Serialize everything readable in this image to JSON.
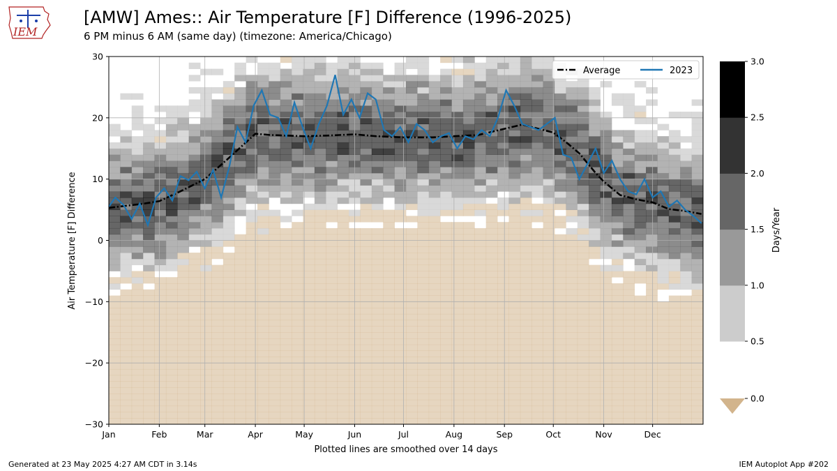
{
  "header": {
    "title": "[AMW] Ames:: Air Temperature [F] Difference (1996-2025)",
    "subtitle": "6 PM minus 6 AM (same day) (timezone: America/Chicago)",
    "logo_text": "IEM"
  },
  "footer": {
    "generated": "Generated at 23 May 2025 4:27 AM CDT in 3.14s",
    "app": "IEM Autoplot App #202"
  },
  "colors": {
    "average": "#000000",
    "year_line": "#1f77b4",
    "below_zero": "#d2b48c",
    "grid": "#b0b0b0"
  },
  "chart_data": {
    "type": "heatmap",
    "title": "[AMW] Ames:: Air Temperature [F] Difference (1996-2025)",
    "xlabel": "Plotted lines are smoothed over 14 days",
    "ylabel": "Air Temperature [F]  Difference",
    "ylim": [
      -30,
      30
    ],
    "yticks": [
      -30,
      -20,
      -10,
      0,
      10,
      20,
      30
    ],
    "ytick_labels": [
      "−30",
      "−20",
      "−10",
      "0",
      "10",
      "20",
      "30"
    ],
    "xticks": [
      "Jan",
      "Feb",
      "Mar",
      "Apr",
      "May",
      "Jun",
      "Jul",
      "Aug",
      "Sep",
      "Oct",
      "Nov",
      "Dec"
    ],
    "xtick_days": [
      1,
      32,
      60,
      91,
      121,
      152,
      182,
      213,
      244,
      274,
      305,
      335
    ],
    "grid": true,
    "legend": {
      "placement": "top-right",
      "entries": [
        "Average",
        "2023"
      ]
    },
    "colorbar": {
      "label": "Days/Year",
      "ticks": [
        "0.0",
        "0.5",
        "1.0",
        "1.5",
        "2.0",
        "2.5",
        "3.0"
      ],
      "levels": [
        0.5,
        1.0,
        1.5,
        2.0,
        2.5,
        3.0
      ],
      "colors": [
        "#cccccc",
        "#999999",
        "#666666",
        "#333333",
        "#000000"
      ],
      "under_color": "#d2b48c"
    },
    "average": {
      "name": "Average",
      "days": [
        1,
        10,
        20,
        32,
        45,
        60,
        75,
        91,
        100,
        110,
        121,
        135,
        152,
        165,
        182,
        200,
        213,
        228,
        244,
        255,
        265,
        274,
        282,
        290,
        300,
        305,
        315,
        325,
        335,
        345,
        355,
        365
      ],
      "values": [
        5.3,
        5.6,
        5.9,
        6.4,
        8.0,
        10.0,
        13.5,
        17.4,
        17.2,
        17.1,
        17.0,
        17.1,
        17.3,
        17.0,
        16.8,
        16.8,
        17.0,
        17.2,
        18.2,
        18.9,
        18.2,
        17.6,
        16.0,
        14.2,
        11.0,
        9.6,
        7.4,
        6.7,
        6.2,
        5.1,
        4.8,
        4.3
      ]
    },
    "year_2023": {
      "name": "2023",
      "days": [
        1,
        5,
        10,
        15,
        20,
        25,
        30,
        35,
        40,
        45,
        50,
        55,
        60,
        65,
        70,
        75,
        80,
        85,
        90,
        95,
        100,
        105,
        110,
        115,
        120,
        125,
        130,
        135,
        140,
        145,
        150,
        155,
        160,
        165,
        170,
        175,
        180,
        185,
        190,
        195,
        200,
        205,
        210,
        215,
        220,
        225,
        230,
        235,
        240,
        245,
        250,
        255,
        260,
        265,
        270,
        275,
        280,
        285,
        290,
        295,
        300,
        305,
        310,
        315,
        320,
        325,
        330,
        335,
        340,
        345,
        350,
        355,
        360,
        365
      ],
      "values": [
        5.5,
        7.0,
        5.8,
        3.5,
        6.0,
        2.5,
        7.0,
        8.5,
        6.5,
        10.5,
        9.8,
        11.2,
        8.5,
        11.5,
        7.0,
        12.0,
        18.5,
        16.0,
        22.0,
        24.5,
        20.5,
        20.0,
        17.0,
        22.5,
        18.5,
        15.0,
        19.0,
        22.0,
        27.0,
        20.5,
        23.0,
        20.0,
        24.0,
        23.0,
        18.0,
        17.0,
        18.5,
        16.0,
        19.0,
        18.0,
        16.0,
        17.0,
        17.5,
        15.0,
        17.0,
        16.5,
        18.0,
        17.0,
        20.0,
        24.5,
        22.0,
        19.0,
        18.5,
        18.0,
        19.0,
        20.0,
        14.0,
        13.5,
        10.0,
        12.5,
        15.0,
        11.0,
        13.0,
        10.0,
        8.0,
        7.5,
        10.0,
        7.0,
        8.0,
        5.5,
        6.5,
        5.0,
        4.0,
        2.8
      ]
    }
  }
}
